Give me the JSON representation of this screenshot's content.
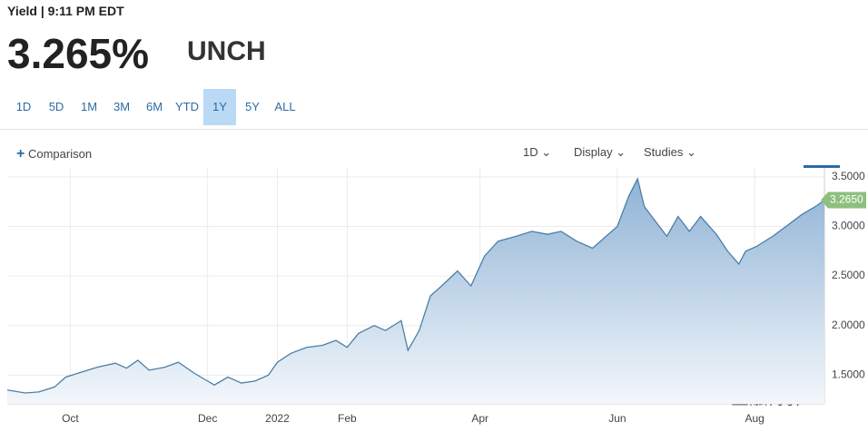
{
  "header": {
    "label": "Yield | 9:11 PM EDT",
    "price": "3.265%",
    "change": "UNCH"
  },
  "ranges": {
    "items": [
      "1D",
      "5D",
      "1M",
      "3M",
      "6M",
      "YTD",
      "1Y",
      "5Y",
      "ALL"
    ],
    "active": 6
  },
  "toolbar": {
    "comparison": "Comparison",
    "interval": "1D",
    "display": "Display",
    "studies": "Studies"
  },
  "watermark": "金融博驿",
  "chart_data": {
    "type": "area",
    "color": "#4a7fa8",
    "x": [
      -28,
      -20,
      -14,
      -7,
      -2,
      5,
      12,
      20,
      25,
      30,
      35,
      42,
      48,
      55,
      61,
      64,
      70,
      76,
      82,
      88,
      92,
      98,
      105,
      112,
      118,
      123,
      128,
      135,
      140,
      147,
      150,
      155,
      160,
      165,
      172,
      178,
      184,
      190,
      198,
      205,
      212,
      218,
      225,
      232,
      238,
      243,
      248,
      252,
      255,
      260,
      265,
      270,
      275,
      280,
      287,
      292,
      297,
      300,
      305,
      312,
      318,
      325,
      331,
      335
    ],
    "values": [
      1.35,
      1.32,
      1.33,
      1.38,
      1.48,
      1.53,
      1.58,
      1.62,
      1.57,
      1.65,
      1.55,
      1.58,
      1.63,
      1.52,
      1.44,
      1.4,
      1.48,
      1.42,
      1.44,
      1.5,
      1.63,
      1.72,
      1.78,
      1.8,
      1.85,
      1.78,
      1.92,
      2.0,
      1.95,
      2.05,
      1.75,
      1.95,
      2.3,
      2.4,
      2.55,
      2.4,
      2.7,
      2.85,
      2.9,
      2.95,
      2.92,
      2.95,
      2.85,
      2.78,
      2.9,
      3.0,
      3.3,
      3.48,
      3.2,
      3.05,
      2.9,
      3.1,
      2.95,
      3.1,
      2.92,
      2.75,
      2.62,
      2.75,
      2.8,
      2.9,
      3.0,
      3.12,
      3.2,
      3.265
    ],
    "last_value_label": "3.2650",
    "xlim": [
      -28,
      335
    ],
    "xticks": [
      {
        "value": 0,
        "label": "Oct"
      },
      {
        "value": 61,
        "label": "Dec"
      },
      {
        "value": 92,
        "label": "2022"
      },
      {
        "value": 123,
        "label": "Feb"
      },
      {
        "value": 182,
        "label": "Apr"
      },
      {
        "value": 243,
        "label": "Jun"
      },
      {
        "value": 304,
        "label": "Aug"
      }
    ],
    "ylim": [
      1.21,
      3.59
    ],
    "yticks": [
      {
        "value": 1.5,
        "label": "1.5000"
      },
      {
        "value": 2,
        "label": "2.0000"
      },
      {
        "value": 2.5,
        "label": "2.5000"
      },
      {
        "value": 3,
        "label": "3.0000"
      },
      {
        "value": 3.5,
        "label": "3.5000"
      }
    ],
    "grid": true
  }
}
